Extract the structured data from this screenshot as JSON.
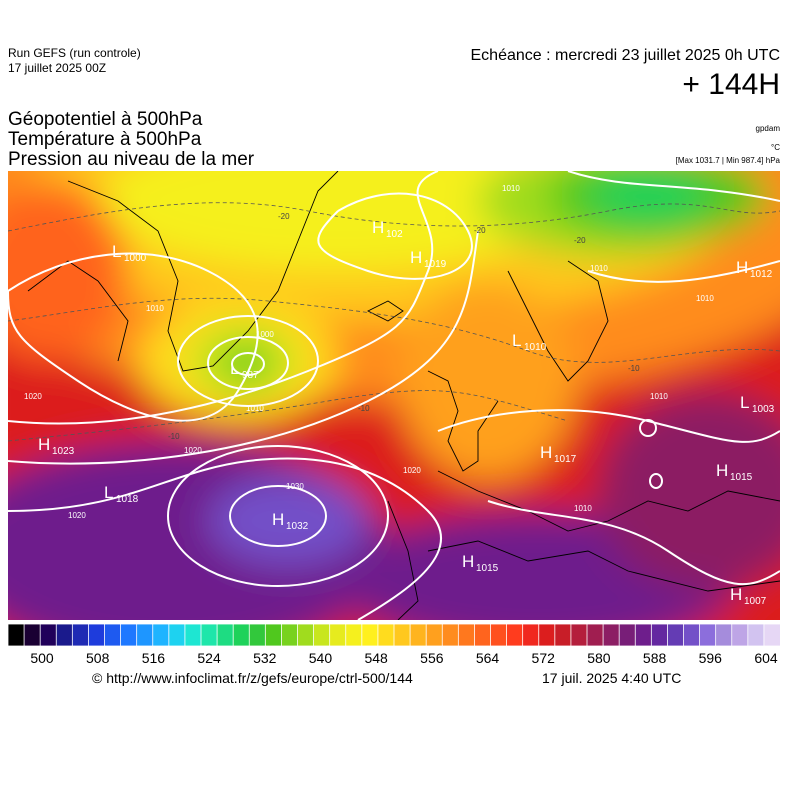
{
  "header": {
    "run_title": "Run GEFS (run controle)",
    "run_date": "17 juillet 2025 00Z",
    "echeance": "Echéance : mercredi 23 juillet 2025 0h UTC",
    "lead_time": "+ 144H"
  },
  "titles": {
    "line1": "Géopotentiel à 500hPa",
    "line2": "Température à 500hPa",
    "line3": "Pression au niveau de la mer"
  },
  "units": {
    "geopotential": "gpdam",
    "temperature": "°C",
    "pressure_range": "[Max 1031.7 | Min 987.4] hPa"
  },
  "map": {
    "pressure_centers": [
      {
        "type": "L",
        "value": "1000"
      },
      {
        "type": "H",
        "value": "102"
      },
      {
        "type": "H",
        "value": "1019"
      },
      {
        "type": "L",
        "value": "1010"
      },
      {
        "type": "H",
        "value": "1012"
      },
      {
        "type": "L",
        "value": "987"
      },
      {
        "type": "L",
        "value": "1003"
      },
      {
        "type": "H",
        "value": "1023"
      },
      {
        "type": "L",
        "value": "1018"
      },
      {
        "type": "H",
        "value": "1032"
      },
      {
        "type": "H",
        "value": "1017"
      },
      {
        "type": "H",
        "value": "1015"
      },
      {
        "type": "H",
        "value": "1015"
      },
      {
        "type": "H",
        "value": "1007"
      }
    ],
    "isobar_labels": [
      "1010",
      "1000",
      "1010",
      "1020",
      "1020",
      "1020",
      "1030",
      "1020",
      "1010",
      "1010",
      "1010",
      "1010",
      "1010"
    ],
    "temperature_labels": [
      "-20",
      "-20",
      "-20",
      "-10",
      "-10",
      "-10"
    ]
  },
  "colorbar": {
    "ticks": [
      "500",
      "508",
      "516",
      "524",
      "532",
      "540",
      "548",
      "556",
      "564",
      "572",
      "580",
      "588",
      "596",
      "604"
    ],
    "colors": [
      "#000000",
      "#1a0033",
      "#20005a",
      "#1a1a8c",
      "#1e2ab4",
      "#1e3cdc",
      "#1e5af0",
      "#1e78ff",
      "#1e96ff",
      "#1eb4ff",
      "#1ed2f0",
      "#1ee6d2",
      "#1ee6aa",
      "#1edc82",
      "#1ed25a",
      "#32c83c",
      "#50c81e",
      "#78d21e",
      "#a0dc1e",
      "#c8e61e",
      "#e6eb1e",
      "#f5f01e",
      "#fff01e",
      "#ffdc1e",
      "#ffc81e",
      "#ffb41e",
      "#ffa01e",
      "#ff8c1e",
      "#ff781e",
      "#ff641e",
      "#ff501e",
      "#ff3c1e",
      "#f0281e",
      "#dc1e1e",
      "#c81e28",
      "#b41e3c",
      "#a01e50",
      "#8c1e64",
      "#781e78",
      "#6e1e8c",
      "#6428a0",
      "#643cb4",
      "#7350c8",
      "#8c6edc",
      "#a58cdc",
      "#bea5e6",
      "#d2c3f0",
      "#e6d7f5"
    ]
  },
  "footer": {
    "url": "© http://www.infoclimat.fr/z/gefs/europe/ctrl-500/144",
    "timestamp": "17 juil. 2025  4:40 UTC"
  }
}
